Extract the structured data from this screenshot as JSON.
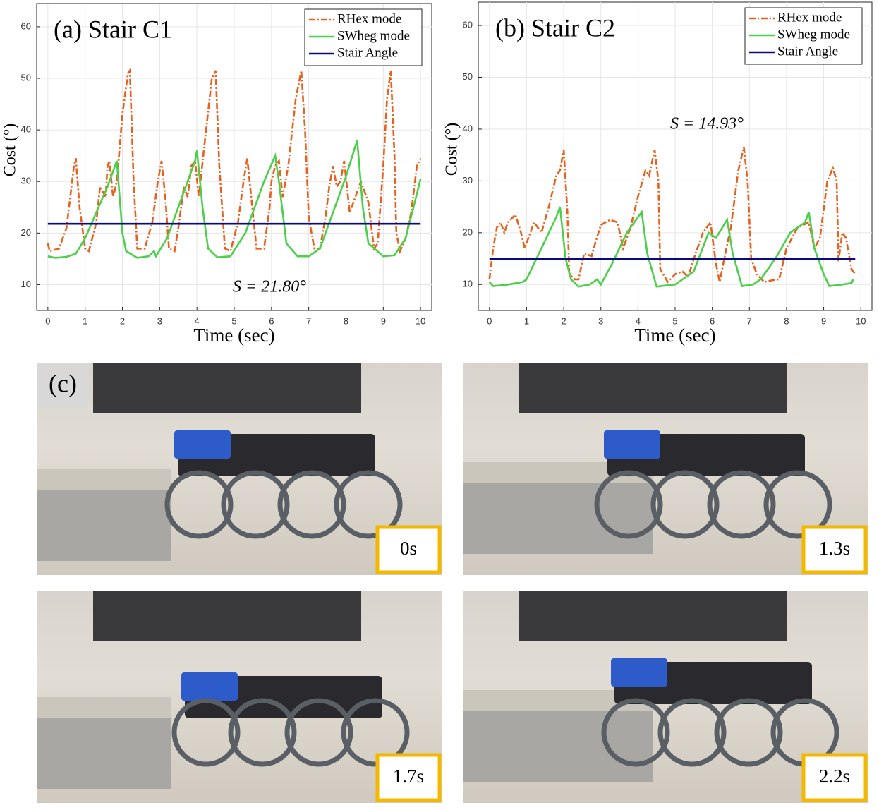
{
  "chart_data": [
    {
      "type": "line",
      "title": "(a) Stair C1",
      "xlabel": "Time (sec)",
      "ylabel": "Cost (°)",
      "annotation": "S = 21.80°",
      "xlim": [
        -0.3,
        10.3
      ],
      "ylim": [
        5,
        64.5
      ],
      "xticks": [
        0,
        1,
        2,
        3,
        4,
        5,
        6,
        7,
        8,
        9,
        10
      ],
      "yticks": [
        10,
        20,
        30,
        40,
        50,
        60
      ],
      "grid": true,
      "legend": "upper right",
      "series": [
        {
          "name": "RHex mode",
          "color": "#e8601c",
          "dash": "dash-dot",
          "x": [
            0,
            0.05,
            0.3,
            0.5,
            0.7,
            0.75,
            0.85,
            1.0,
            1.1,
            1.3,
            1.4,
            1.55,
            1.6,
            1.65,
            1.75,
            1.85,
            2.0,
            2.15,
            2.2,
            2.3,
            2.4,
            2.6,
            2.8,
            2.95,
            3.05,
            3.15,
            3.25,
            3.4,
            3.5,
            3.65,
            3.75,
            3.85,
            3.95,
            4.05,
            4.2,
            4.4,
            4.5,
            4.6,
            4.75,
            4.9,
            5.1,
            5.25,
            5.35,
            5.5,
            5.6,
            5.8,
            5.95,
            6.0,
            6.1,
            6.2,
            6.3,
            6.45,
            6.65,
            6.8,
            6.9,
            7.0,
            7.15,
            7.3,
            7.45,
            7.55,
            7.65,
            7.75,
            7.85,
            7.95,
            8.1,
            8.25,
            8.4,
            8.6,
            8.75,
            8.85,
            9.0,
            9.1,
            9.2,
            9.3,
            9.35,
            9.45,
            9.6,
            9.75,
            9.9,
            10.0
          ],
          "values": [
            18,
            16.5,
            17,
            21,
            33,
            34.5,
            25,
            17,
            16.5,
            22,
            29,
            27,
            33,
            34,
            27,
            30,
            43,
            51,
            51.5,
            30,
            17,
            17,
            22,
            30,
            34,
            27,
            17,
            16.5,
            21,
            29,
            27,
            33,
            34,
            27,
            37,
            50,
            51.5,
            33,
            17,
            16.5,
            22,
            30,
            34.5,
            24,
            17,
            17,
            25,
            30,
            33,
            34,
            27,
            33,
            46,
            51.5,
            40,
            23,
            17,
            17,
            23,
            29,
            33,
            29,
            30,
            34,
            24,
            27,
            30,
            26,
            17,
            18,
            33,
            46,
            51.5,
            35,
            20,
            16.5,
            19,
            24,
            33,
            34.5
          ]
        },
        {
          "name": "SWheg mode",
          "color": "#4cd04c",
          "dash": "solid",
          "x": [
            0,
            0.2,
            0.5,
            0.75,
            1.0,
            1.3,
            1.6,
            1.85,
            2.0,
            2.1,
            2.4,
            2.7,
            2.85,
            2.9,
            3.2,
            3.6,
            3.95,
            4.0,
            4.15,
            4.3,
            4.55,
            4.9,
            5.3,
            5.8,
            6.1,
            6.2,
            6.4,
            6.7,
            7.0,
            7.3,
            7.6,
            8.0,
            8.3,
            8.45,
            8.6,
            9.0,
            9.3,
            9.6,
            10.0
          ],
          "values": [
            15.5,
            15.2,
            15.4,
            16,
            19,
            24,
            29,
            34,
            20,
            16.5,
            15.2,
            15.5,
            16.5,
            15.5,
            19,
            27,
            34,
            36,
            25,
            17,
            15.3,
            15.5,
            20,
            30,
            35,
            30,
            18,
            15.5,
            15.5,
            17,
            23,
            31,
            38,
            25,
            18,
            15.5,
            15.7,
            19,
            30.5
          ]
        },
        {
          "name": "Stair Angle",
          "color": "#0a0a80",
          "dash": "solid",
          "x": [
            0,
            10
          ],
          "values": [
            21.8,
            21.8
          ]
        }
      ]
    },
    {
      "type": "line",
      "title": "(b) Stair C2",
      "xlabel": "Time (sec)",
      "ylabel": "Cost (°)",
      "annotation": "S = 14.93°",
      "xlim": [
        -0.3,
        10.3
      ],
      "ylim": [
        5,
        64.5
      ],
      "xticks": [
        0,
        1,
        2,
        3,
        4,
        5,
        6,
        7,
        8,
        9,
        10
      ],
      "yticks": [
        10,
        20,
        30,
        40,
        50,
        60
      ],
      "grid": true,
      "legend": "upper right",
      "series": [
        {
          "name": "RHex mode",
          "color": "#e8601c",
          "dash": "dash-dot",
          "x": [
            0,
            0.1,
            0.2,
            0.3,
            0.4,
            0.5,
            0.7,
            0.85,
            0.95,
            1.05,
            1.2,
            1.4,
            1.6,
            1.8,
            1.9,
            2.0,
            2.1,
            2.15,
            2.3,
            2.4,
            2.55,
            2.75,
            2.85,
            3.0,
            3.25,
            3.45,
            3.6,
            3.8,
            4.0,
            4.2,
            4.3,
            4.45,
            4.55,
            4.6,
            4.8,
            5.0,
            5.2,
            5.35,
            5.55,
            5.75,
            5.95,
            6.1,
            6.2,
            6.35,
            6.5,
            6.7,
            6.85,
            6.95,
            7.05,
            7.2,
            7.4,
            7.6,
            7.8,
            8.0,
            8.3,
            8.6,
            8.75,
            8.9,
            9.1,
            9.25,
            9.35,
            9.4,
            9.5,
            9.6,
            9.75,
            9.85
          ],
          "values": [
            11,
            17,
            21,
            22,
            20,
            22,
            23.5,
            20,
            17,
            19,
            22,
            20,
            25,
            31,
            32,
            36,
            24,
            12,
            11,
            11,
            16,
            15.5,
            18,
            21.5,
            22.5,
            22,
            17,
            21,
            27,
            32,
            31,
            36,
            30,
            13,
            10.5,
            12,
            12.5,
            11.5,
            16,
            20,
            22,
            14,
            10.5,
            16,
            21,
            32,
            36.5,
            30,
            15,
            12,
            10.5,
            10.8,
            11,
            17,
            21,
            22,
            17,
            19,
            30,
            32.5,
            30,
            14.5,
            20,
            19,
            13,
            12
          ]
        },
        {
          "name": "SWheg mode",
          "color": "#4cd04c",
          "dash": "solid",
          "x": [
            0,
            0.1,
            0.5,
            0.9,
            1.0,
            1.4,
            1.8,
            1.9,
            2.05,
            2.2,
            2.4,
            2.7,
            2.9,
            3.0,
            3.3,
            3.7,
            4.0,
            4.1,
            4.25,
            4.5,
            5.0,
            5.5,
            5.9,
            6.1,
            6.4,
            6.55,
            6.8,
            7.1,
            7.3,
            7.7,
            8.1,
            8.5,
            8.6,
            8.75,
            9.0,
            9.15,
            9.5,
            9.75,
            9.8
          ],
          "values": [
            10.5,
            9.7,
            10,
            10.5,
            11,
            17,
            23,
            25,
            15,
            11,
            9.6,
            10,
            11,
            10,
            14,
            20,
            23,
            24,
            16,
            9.6,
            10,
            12.5,
            20,
            19,
            22.5,
            16,
            9.7,
            10,
            11,
            15,
            20,
            22,
            24,
            17,
            12,
            9.7,
            10,
            10.3,
            11
          ]
        },
        {
          "name": "Stair Angle",
          "color": "#0a0a80",
          "dash": "solid",
          "x": [
            0,
            9.85
          ],
          "values": [
            14.93,
            14.93
          ]
        }
      ]
    }
  ],
  "photos": {
    "label": "(c)",
    "frames": [
      {
        "time": "0s"
      },
      {
        "time": "1.3s"
      },
      {
        "time": "1.7s"
      },
      {
        "time": "2.2s"
      }
    ]
  }
}
